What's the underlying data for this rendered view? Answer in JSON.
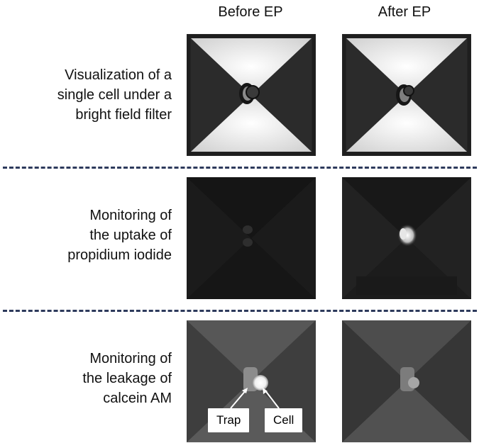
{
  "columns": {
    "before": "Before EP",
    "after": "After EP"
  },
  "rows": [
    {
      "label": [
        "Visualization of a",
        "single cell under a",
        "bright field filter"
      ]
    },
    {
      "label": [
        "Monitoring of",
        "the uptake of",
        "propidium iodide"
      ]
    },
    {
      "label": [
        "Monitoring of",
        "the leakage of",
        "calcein AM"
      ]
    }
  ],
  "annotations": {
    "trap": "Trap",
    "cell": "Cell"
  },
  "colors": {
    "divider": "#2d3a5c",
    "brightfield_light": "#ececec",
    "brightfield_dark": "#2b2b2b"
  }
}
